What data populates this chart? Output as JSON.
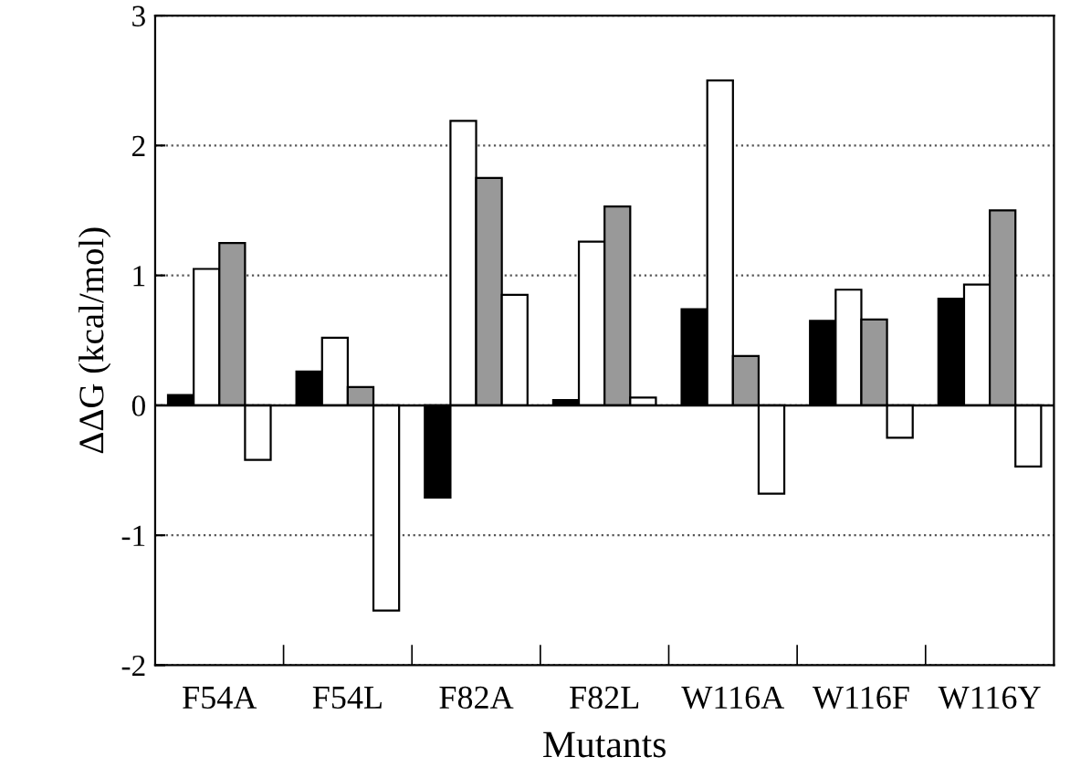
{
  "chart_data": {
    "type": "bar",
    "xlabel": "Mutants",
    "ylabel": "ΔΔG (kcal/mol)",
    "categories": [
      "F54A",
      "F54L",
      "F82A",
      "F82L",
      "W116A",
      "W116F",
      "W116Y"
    ],
    "series": [
      {
        "color": "#000000",
        "values": [
          0.08,
          0.26,
          -0.71,
          0.04,
          0.74,
          0.65,
          0.82
        ]
      },
      {
        "color": "#ffffff",
        "values": [
          1.05,
          0.52,
          2.19,
          1.26,
          2.5,
          0.89,
          0.93
        ]
      },
      {
        "color": "#999999",
        "values": [
          1.25,
          0.14,
          1.75,
          1.53,
          0.38,
          0.66,
          1.5
        ]
      },
      {
        "color": "#ffffff",
        "values": [
          -0.42,
          -1.58,
          0.85,
          0.06,
          -0.68,
          -0.25,
          -0.47
        ]
      }
    ],
    "ylim": [
      -2,
      3
    ],
    "yticks": [
      -2,
      -1,
      0,
      1,
      2,
      3
    ],
    "grid": "y",
    "line_style": "dotted",
    "ref_lines": [
      {
        "axis": "y",
        "value": 0,
        "label": null
      }
    ]
  }
}
